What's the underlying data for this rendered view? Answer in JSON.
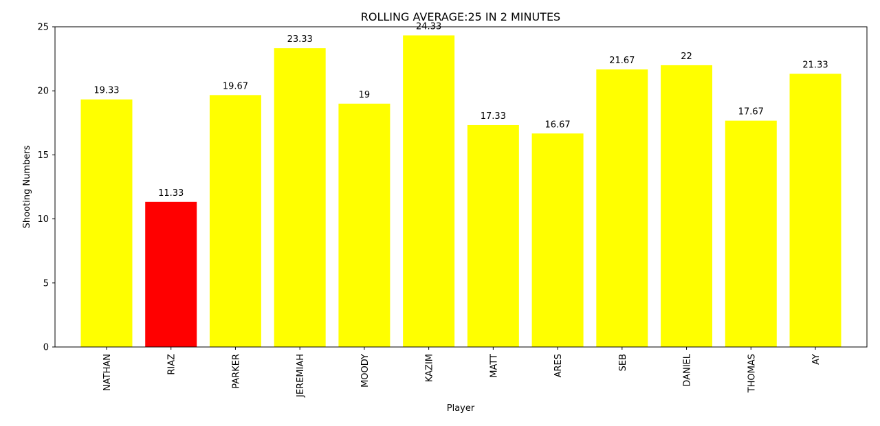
{
  "chart_data": {
    "type": "bar",
    "title": "ROLLING AVERAGE:25 IN 2 MINUTES",
    "xlabel": "Player",
    "ylabel": "Shooting Numbers",
    "ylim": [
      0,
      25
    ],
    "yticks": [
      "0",
      "5",
      "10",
      "15",
      "20",
      "25"
    ],
    "categories": [
      "NATHAN",
      "RIAZ",
      "PARKER",
      "JEREMIAH",
      "MOODY",
      "KAZIM",
      "MATT",
      "ARES",
      "SEB",
      "DANIEL",
      "THOMAS",
      "AY"
    ],
    "values": [
      19.33,
      11.33,
      19.67,
      23.33,
      19,
      24.33,
      17.33,
      16.67,
      21.67,
      22,
      17.67,
      21.33
    ],
    "value_labels": [
      "19.33",
      "11.33",
      "19.67",
      "23.33",
      "19",
      "24.33",
      "17.33",
      "16.67",
      "21.67",
      "22",
      "17.67",
      "21.33"
    ],
    "bar_colors": [
      "#ffff00",
      "#ff0000",
      "#ffff00",
      "#ffff00",
      "#ffff00",
      "#ffff00",
      "#ffff00",
      "#ffff00",
      "#ffff00",
      "#ffff00",
      "#ffff00",
      "#ffff00"
    ],
    "grid": false,
    "legend": "none"
  }
}
